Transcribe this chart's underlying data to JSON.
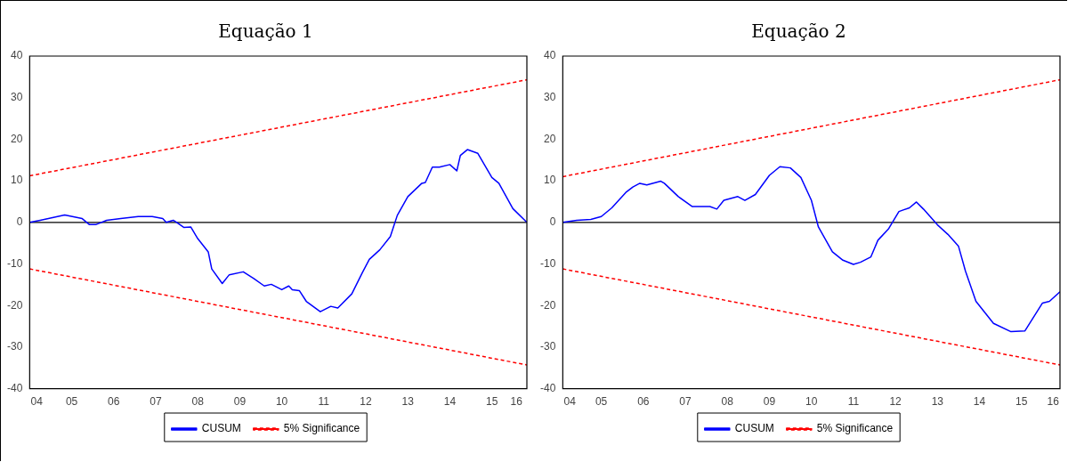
{
  "chart_data": [
    {
      "type": "line",
      "title": "Equação 1",
      "legend": "bottom",
      "marker": "none",
      "xlim": [
        "2004-07",
        "2016-05"
      ],
      "ylim": [
        -40,
        40
      ],
      "yticks": [
        -40,
        -30,
        -20,
        -10,
        0,
        10,
        20,
        30,
        40
      ],
      "xticks": [
        {
          "value": "2004-09",
          "label": "04"
        },
        {
          "value": "2005-07",
          "label": "05"
        },
        {
          "value": "2006-07",
          "label": "06"
        },
        {
          "value": "2007-07",
          "label": "07"
        },
        {
          "value": "2008-07",
          "label": "08"
        },
        {
          "value": "2009-07",
          "label": "09"
        },
        {
          "value": "2010-07",
          "label": "10"
        },
        {
          "value": "2011-07",
          "label": "11"
        },
        {
          "value": "2012-07",
          "label": "12"
        },
        {
          "value": "2013-07",
          "label": "13"
        },
        {
          "value": "2014-07",
          "label": "14"
        },
        {
          "value": "2015-07",
          "label": "15"
        },
        {
          "value": "2016-02",
          "label": "16"
        }
      ],
      "ref_lines": [
        {
          "axis": "y",
          "value": 0,
          "color": "#000000"
        }
      ],
      "series": [
        {
          "name": "CUSUM",
          "color": "#0000ff",
          "line_style": "solid",
          "x": [
            "2004-07",
            "2004-10",
            "2005-05",
            "2005-10",
            "2005-12",
            "2006-02",
            "2006-05",
            "2006-09",
            "2007-02",
            "2007-06",
            "2007-09",
            "2007-10",
            "2007-12",
            "2008-01",
            "2008-03",
            "2008-05",
            "2008-07",
            "2008-10",
            "2008-11",
            "2009-02",
            "2009-04",
            "2009-08",
            "2009-11",
            "2010-02",
            "2010-04",
            "2010-07",
            "2010-09",
            "2010-10",
            "2010-12",
            "2011-02",
            "2011-06",
            "2011-09",
            "2011-11",
            "2012-03",
            "2012-06",
            "2012-08",
            "2012-11",
            "2013-02",
            "2013-04",
            "2013-07",
            "2013-11",
            "2013-12",
            "2014-02",
            "2014-04",
            "2014-07",
            "2014-09",
            "2014-10",
            "2014-12",
            "2015-03",
            "2015-07",
            "2015-09",
            "2016-01",
            "2016-05"
          ],
          "values": [
            0,
            0.5,
            1.8,
            0.9,
            -0.5,
            -0.5,
            0.5,
            0.9,
            1.4,
            1.4,
            0.9,
            0,
            0.5,
            0,
            -1.2,
            -1.1,
            -3.9,
            -7.1,
            -11.2,
            -14.7,
            -12.6,
            -11.9,
            -13.5,
            -15.3,
            -14.9,
            -16.2,
            -15.3,
            -16.2,
            -16.4,
            -19,
            -21.5,
            -20.2,
            -20.6,
            -17.2,
            -12.1,
            -8.9,
            -6.6,
            -3.4,
            1.7,
            6.2,
            9.4,
            9.6,
            13.3,
            13.3,
            13.9,
            12.4,
            16.1,
            17.5,
            16.6,
            10.8,
            9.4,
            3.3,
            0
          ]
        },
        {
          "name": "5% Significance",
          "color": "#ff0000",
          "line_style": "dashed",
          "x": [
            "2004-07",
            "2016-05"
          ],
          "values": [
            11.2,
            34.3
          ]
        },
        {
          "color": "#ff0000",
          "line_style": "dashed",
          "x": [
            "2004-07",
            "2016-05"
          ],
          "values": [
            -11.2,
            -34.3
          ]
        }
      ]
    },
    {
      "type": "line",
      "title": "Equação 2",
      "legend": "bottom",
      "marker": "none",
      "xlim": [
        "2004-08",
        "2016-06"
      ],
      "ylim": [
        -40,
        40
      ],
      "yticks": [
        -40,
        -30,
        -20,
        -10,
        0,
        10,
        20,
        30,
        40
      ],
      "xticks": [
        {
          "value": "2004-10",
          "label": "04"
        },
        {
          "value": "2005-07",
          "label": "05"
        },
        {
          "value": "2006-07",
          "label": "06"
        },
        {
          "value": "2007-07",
          "label": "07"
        },
        {
          "value": "2008-07",
          "label": "08"
        },
        {
          "value": "2009-07",
          "label": "09"
        },
        {
          "value": "2010-07",
          "label": "10"
        },
        {
          "value": "2011-07",
          "label": "11"
        },
        {
          "value": "2012-07",
          "label": "12"
        },
        {
          "value": "2013-07",
          "label": "13"
        },
        {
          "value": "2014-07",
          "label": "14"
        },
        {
          "value": "2015-07",
          "label": "15"
        },
        {
          "value": "2016-04",
          "label": "16"
        }
      ],
      "ref_lines": [
        {
          "axis": "y",
          "value": 0,
          "color": "#000000"
        }
      ],
      "series": [
        {
          "name": "CUSUM",
          "color": "#0000ff",
          "line_style": "solid",
          "x": [
            "2004-08",
            "2004-12",
            "2005-04",
            "2005-07",
            "2005-10",
            "2006-02",
            "2006-04",
            "2006-06",
            "2006-08",
            "2006-12",
            "2007-01",
            "2007-05",
            "2007-09",
            "2008-02",
            "2008-04",
            "2008-06",
            "2008-10",
            "2008-12",
            "2009-03",
            "2009-07",
            "2009-10",
            "2010-01",
            "2010-04",
            "2010-07",
            "2010-09",
            "2011-01",
            "2011-04",
            "2011-07",
            "2011-09",
            "2011-12",
            "2012-02",
            "2012-05",
            "2012-08",
            "2012-11",
            "2013-01",
            "2013-03",
            "2013-07",
            "2013-10",
            "2014-01",
            "2014-03",
            "2014-06",
            "2014-11",
            "2015-04",
            "2015-08",
            "2016-01",
            "2016-03",
            "2016-06"
          ],
          "values": [
            0,
            0.5,
            0.7,
            1.4,
            3.5,
            7.2,
            8.5,
            9.4,
            9,
            9.9,
            9.4,
            6.2,
            3.8,
            3.8,
            3.2,
            5.3,
            6.2,
            5.3,
            6.7,
            11.3,
            13.4,
            13.1,
            10.8,
            5.3,
            -1.1,
            -7.1,
            -9.1,
            -10.1,
            -9.6,
            -8.3,
            -4.3,
            -1.6,
            2.6,
            3.5,
            4.9,
            3.2,
            -0.6,
            -2.9,
            -5.7,
            -11.7,
            -19,
            -24.3,
            -26.3,
            -26.1,
            -19.4,
            -19,
            -16.7
          ]
        },
        {
          "name": "5% Significance",
          "color": "#ff0000",
          "line_style": "dashed",
          "x": [
            "2004-08",
            "2016-06"
          ],
          "values": [
            11,
            34.3
          ]
        },
        {
          "color": "#ff0000",
          "line_style": "dashed",
          "x": [
            "2004-08",
            "2016-06"
          ],
          "values": [
            -11.2,
            -34.3
          ]
        }
      ]
    }
  ]
}
